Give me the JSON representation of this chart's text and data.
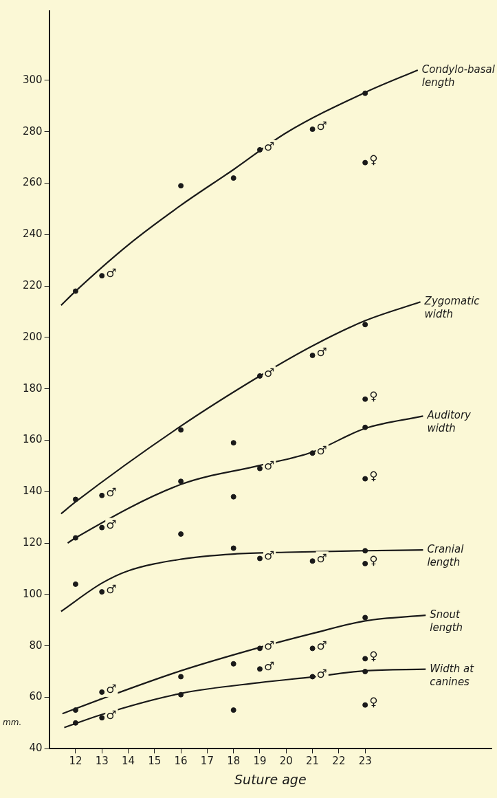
{
  "chart_data": {
    "type": "line",
    "xlabel": "Suture age",
    "ylabel": "mm.",
    "xlim": [
      11,
      27.8
    ],
    "xticks": [
      12,
      13,
      14,
      15,
      16,
      17,
      18,
      19,
      20,
      21,
      22,
      23
    ],
    "ylim": [
      40,
      327
    ],
    "yticks": [
      40,
      60,
      80,
      100,
      120,
      140,
      160,
      180,
      200,
      220,
      240,
      260,
      280,
      300
    ],
    "series": [
      {
        "name": "Condylo-basal length",
        "color": "#1a1a1a",
        "x": [
          11.45,
          12,
          14,
          16,
          18,
          20,
          23,
          25
        ],
        "values": [
          212.5,
          218,
          236,
          251.4,
          265.3,
          279.6,
          295.3,
          304
        ]
      },
      {
        "type": "scatter",
        "marker": "circle",
        "color": "#1a1a1a",
        "x": [
          12,
          13,
          16,
          18,
          19,
          21,
          23,
          23
        ],
        "values": [
          218,
          224,
          259,
          262,
          273,
          281,
          295,
          268
        ],
        "value_labels": [
          null,
          "♂",
          null,
          null,
          "♂",
          "♂",
          null,
          "♀"
        ]
      },
      {
        "name": "Zygomatic width",
        "color": "#1a1a1a",
        "x": [
          11.45,
          12,
          16,
          19,
          21,
          23,
          25.1
        ],
        "values": [
          131.4,
          136,
          165.5,
          185,
          196.7,
          206.5,
          213.8
        ]
      },
      {
        "type": "scatter",
        "marker": "circle",
        "color": "#1a1a1a",
        "x": [
          12,
          13,
          16,
          18,
          19,
          21,
          23,
          23
        ],
        "values": [
          137,
          138.5,
          164,
          159,
          185,
          193,
          205,
          176
        ],
        "value_labels": [
          null,
          "♂",
          null,
          null,
          "♂",
          "♂",
          null,
          "♀"
        ]
      },
      {
        "name": "Auditory width",
        "color": "#1a1a1a",
        "x": [
          11.7,
          12,
          16,
          19,
          21,
          23,
          25.2
        ],
        "values": [
          120,
          122,
          142.8,
          150.2,
          155.4,
          164.6,
          169.4
        ]
      },
      {
        "type": "scatter",
        "marker": "circle",
        "color": "#1a1a1a",
        "x": [
          12,
          13,
          16,
          18,
          19,
          21,
          23,
          23
        ],
        "values": [
          122,
          126,
          144,
          138,
          149,
          155,
          165,
          145
        ],
        "value_labels": [
          null,
          "♂",
          null,
          null,
          "♂",
          "♂",
          null,
          "♀"
        ]
      },
      {
        "name": "Cranial length",
        "color": "#1a1a1a",
        "x": [
          11.45,
          13,
          14,
          16,
          18,
          20,
          23,
          25.2
        ],
        "values": [
          93.4,
          104.4,
          109.2,
          113.7,
          115.7,
          116.4,
          117,
          117.3
        ]
      },
      {
        "type": "scatter",
        "marker": "circle",
        "color": "#1a1a1a",
        "x": [
          12,
          13,
          16,
          18,
          19,
          21,
          23,
          23
        ],
        "values": [
          104,
          101,
          123.5,
          118,
          114,
          113,
          117,
          112
        ],
        "value_labels": [
          null,
          "♂",
          null,
          null,
          "♂",
          "♂",
          null,
          "♀"
        ]
      },
      {
        "name": "Snout length",
        "color": "#1a1a1a",
        "x": [
          11.5,
          13,
          16,
          19,
          21,
          23,
          25.3
        ],
        "values": [
          53.6,
          59.4,
          70.3,
          79.4,
          84.8,
          89.7,
          91.9
        ]
      },
      {
        "type": "scatter",
        "marker": "circle",
        "color": "#1a1a1a",
        "x": [
          12,
          13,
          16,
          18,
          19,
          21,
          23,
          23
        ],
        "values": [
          55,
          62,
          68,
          73,
          79,
          79,
          91,
          75
        ],
        "value_labels": [
          null,
          "♂",
          null,
          null,
          "♂",
          "♂",
          null,
          "♀"
        ]
      },
      {
        "name": "Width at canines",
        "color": "#1a1a1a",
        "x": [
          11.57,
          13,
          16,
          19,
          21,
          23,
          25.3
        ],
        "values": [
          48.2,
          53.3,
          61.5,
          65.7,
          67.9,
          70.3,
          70.9
        ]
      },
      {
        "type": "scatter",
        "marker": "circle",
        "color": "#1a1a1a",
        "x": [
          12,
          13,
          16,
          18,
          19,
          21,
          23,
          23
        ],
        "values": [
          50,
          52,
          61,
          55,
          71,
          68,
          70,
          57
        ],
        "value_labels": [
          null,
          "♂",
          null,
          null,
          "♂",
          "♂",
          null,
          "♀"
        ]
      }
    ]
  }
}
